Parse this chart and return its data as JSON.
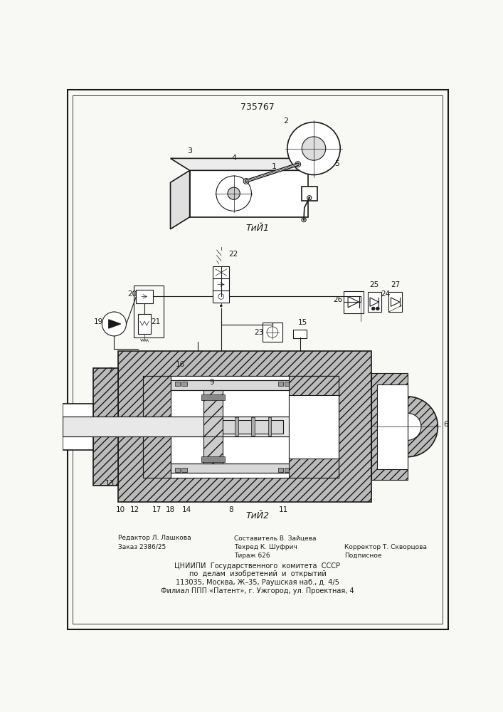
{
  "patent_number": "735767",
  "background_color": "#f8f8f5",
  "border_color": "#111111",
  "fig1_caption": "ΤиЙ1",
  "fig2_caption": "ΤиЙ2",
  "footer_col1_line1": "Редактор Л. Лашкова",
  "footer_col1_line2": "Заказ 2386/25",
  "footer_col2_line1": "Составитель В. Зайцева",
  "footer_col2_line2": "Техред К. Шуфрич",
  "footer_col2_line3": "Тираж 626",
  "footer_col3_line1": "Корректор Т. Скворцова",
  "footer_col3_line2": "Подписное",
  "footer_cniipи1": "ЦНИИПИ  Государственного  комитета  СССР",
  "footer_cniipи2": "по  делам  изобретений  и  открытий",
  "footer_addr1": "113035, Москва, Ж–35, Раушская наб., д. 4/5",
  "footer_addr2": "Филиал ППП «Патент», г. Ужгород, ул. Проектная, 4"
}
